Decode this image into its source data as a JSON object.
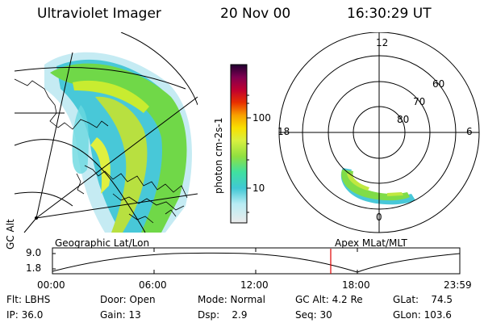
{
  "header": {
    "title": "Ultraviolet Imager",
    "date": "20 Nov 00",
    "time": "16:30:29 UT"
  },
  "geo_panel": {
    "label": "Geographic Lat/Lon"
  },
  "colorbar": {
    "unit_label": "photon cm-2s-1",
    "ticks": [
      "100",
      "10"
    ],
    "scale": "log",
    "colors": [
      "#e6e6e6",
      "#b0e8f0",
      "#3cc8d8",
      "#3ce0a0",
      "#80e040",
      "#d8f040",
      "#f8d000",
      "#f89000",
      "#e83000",
      "#c00030",
      "#800050",
      "#300040"
    ]
  },
  "polar_panel": {
    "label": "Apex MLat/MLT",
    "mlt_labels": [
      "12",
      "18",
      "6",
      "0"
    ],
    "lat_labels": [
      "60",
      "70",
      "80"
    ]
  },
  "altitude_plot": {
    "ylabel": "GC Alt",
    "yticks": [
      "9.0",
      "1.8"
    ],
    "xticks": [
      "00:00",
      "06:00",
      "12:00",
      "18:00",
      "23:59"
    ],
    "current_time_marker_color": "#e00000"
  },
  "info": {
    "flt": "Flt: LBHS",
    "ip": "IP: 36.0",
    "door": "Door: Open",
    "gain": "Gain: 13",
    "mode": "Mode: Normal",
    "dsp": "Dsp:    2.9",
    "gc_alt": "GC Alt: 4.2 Re",
    "seq": "Seq: 30",
    "glat": "GLat:    74.5",
    "glon": "GLon: 103.6"
  }
}
